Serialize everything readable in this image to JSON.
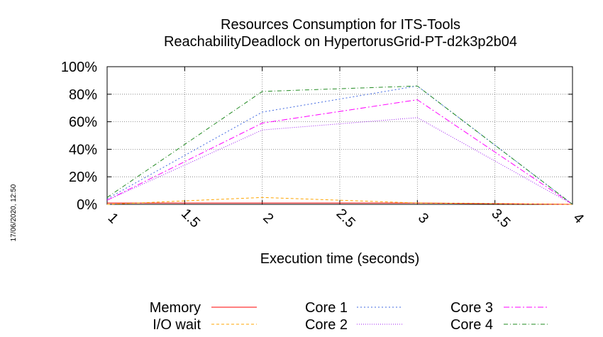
{
  "chart_data": {
    "type": "line",
    "title_lines": [
      "Resources Consumption for ITS-Tools",
      "ReachabilityDeadlock on HypertorusGrid-PT-d2k3p2b04"
    ],
    "xlabel": "Execution time (seconds)",
    "ylabel": "",
    "side_label": "17/06/2020, 12:50",
    "xlim": [
      1,
      4
    ],
    "ylim": [
      0,
      100
    ],
    "x_ticks": [
      "1",
      "1.5",
      "2",
      "2.5",
      "3",
      "3.5",
      "4"
    ],
    "y_ticks": [
      "0%",
      "20%",
      "40%",
      "60%",
      "80%",
      "100%"
    ],
    "grid": true,
    "legend_position": "bottom",
    "series": [
      {
        "name": "Memory",
        "color": "#ff0000",
        "dash": "none",
        "x": [
          1,
          2,
          3,
          4
        ],
        "values": [
          1,
          1,
          1,
          0
        ]
      },
      {
        "name": "I/O wait",
        "color": "#ffa500",
        "dash": "4,3",
        "x": [
          1,
          2,
          3,
          4
        ],
        "values": [
          0,
          5,
          1,
          0
        ]
      },
      {
        "name": "Core 1",
        "color": "#4169e1",
        "dash": "2,3",
        "x": [
          1,
          2,
          3,
          4
        ],
        "values": [
          4,
          67,
          86,
          0
        ]
      },
      {
        "name": "Core 2",
        "color": "#a020f0",
        "dash": "1,2",
        "x": [
          1,
          2,
          3,
          4
        ],
        "values": [
          3,
          54,
          63,
          0
        ]
      },
      {
        "name": "Core 3",
        "color": "#ff00ff",
        "dash": "8,3,2,3",
        "x": [
          1,
          2,
          3,
          4
        ],
        "values": [
          3,
          59,
          76,
          0
        ]
      },
      {
        "name": "Core 4",
        "color": "#228b22",
        "dash": "6,3,1,3",
        "x": [
          1,
          2,
          3,
          4
        ],
        "values": [
          5,
          82,
          86,
          0
        ]
      }
    ]
  }
}
